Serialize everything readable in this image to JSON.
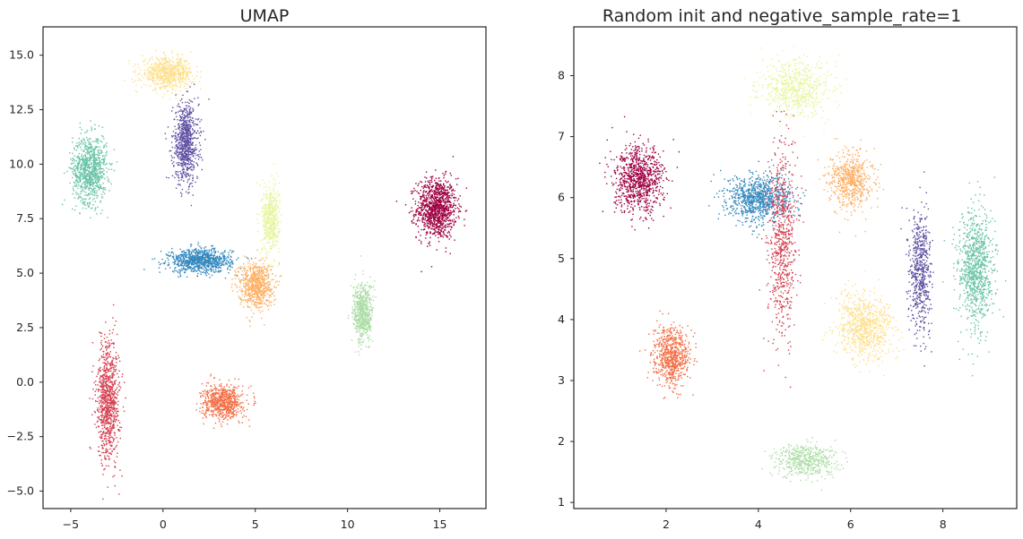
{
  "figure": {
    "background": "#ffffff",
    "point_style": "dense colored point clouds"
  },
  "chart_data": [
    {
      "type": "scatter",
      "title": "UMAP",
      "xlabel": "",
      "ylabel": "",
      "xlim": [
        -6.5,
        17.5
      ],
      "ylim": [
        -5.8,
        16.3
      ],
      "xticks": [
        -5,
        0,
        5,
        10,
        15
      ],
      "xtick_labels": [
        "−5",
        "0",
        "5",
        "10",
        "15"
      ],
      "yticks": [
        -5.0,
        -2.5,
        0.0,
        2.5,
        5.0,
        7.5,
        10.0,
        12.5,
        15.0
      ],
      "ytick_labels": [
        "−5.0",
        "−2.5",
        "0.0",
        "2.5",
        "5.0",
        "7.5",
        "10.0",
        "12.5",
        "15.0"
      ],
      "grid": false,
      "legend": "none",
      "clusters": [
        {
          "color": "#9e0142",
          "center": [
            14.8,
            8.0
          ],
          "spread": [
            1.4,
            1.8
          ],
          "count": 1100
        },
        {
          "color": "#66c2a5",
          "center": [
            -4.0,
            9.8
          ],
          "spread": [
            1.2,
            2.0
          ],
          "count": 900
        },
        {
          "color": "#5e4fa2",
          "center": [
            1.2,
            11.0
          ],
          "spread": [
            0.9,
            2.4
          ],
          "count": 800
        },
        {
          "color": "#fee08b",
          "center": [
            0.2,
            14.2
          ],
          "spread": [
            1.8,
            0.9
          ],
          "count": 700
        },
        {
          "color": "#3288bd",
          "center": [
            2.0,
            5.6
          ],
          "spread": [
            2.2,
            0.7
          ],
          "count": 900
        },
        {
          "color": "#e6f598",
          "center": [
            5.8,
            7.5
          ],
          "spread": [
            0.6,
            2.0
          ],
          "count": 500
        },
        {
          "color": "#fdae61",
          "center": [
            5.0,
            4.5
          ],
          "spread": [
            1.2,
            1.4
          ],
          "count": 700
        },
        {
          "color": "#abdda4",
          "center": [
            10.8,
            3.2
          ],
          "spread": [
            0.7,
            1.8
          ],
          "count": 600
        },
        {
          "color": "#f46d43",
          "center": [
            3.2,
            -0.9
          ],
          "spread": [
            1.4,
            1.0
          ],
          "count": 700
        },
        {
          "color": "#d53e4f",
          "center": [
            -3.0,
            -0.8
          ],
          "spread": [
            0.8,
            3.6
          ],
          "count": 900
        }
      ]
    },
    {
      "type": "scatter",
      "title": "Random init and negative_sample_rate=1",
      "xlabel": "",
      "ylabel": "",
      "xlim": [
        0.0,
        9.6
      ],
      "ylim": [
        0.9,
        8.8
      ],
      "xticks": [
        2,
        4,
        6,
        8
      ],
      "xtick_labels": [
        "2",
        "4",
        "6",
        "8"
      ],
      "yticks": [
        1,
        2,
        3,
        4,
        5,
        6,
        7,
        8
      ],
      "ytick_labels": [
        "1",
        "2",
        "3",
        "4",
        "5",
        "6",
        "7",
        "8"
      ],
      "grid": false,
      "legend": "none",
      "clusters": [
        {
          "color": "#9e0142",
          "center": [
            1.4,
            6.3
          ],
          "spread": [
            0.7,
            0.7
          ],
          "count": 900
        },
        {
          "color": "#3288bd",
          "center": [
            4.0,
            6.0
          ],
          "spread": [
            0.9,
            0.5
          ],
          "count": 900
        },
        {
          "color": "#fdae61",
          "center": [
            6.0,
            6.3
          ],
          "spread": [
            0.6,
            0.6
          ],
          "count": 600
        },
        {
          "color": "#e6f598",
          "center": [
            4.8,
            7.8
          ],
          "spread": [
            1.0,
            0.6
          ],
          "count": 600
        },
        {
          "color": "#d53e4f",
          "center": [
            4.5,
            5.3
          ],
          "spread": [
            0.4,
            2.0
          ],
          "count": 700
        },
        {
          "color": "#5e4fa2",
          "center": [
            7.5,
            4.8
          ],
          "spread": [
            0.3,
            1.3
          ],
          "count": 600
        },
        {
          "color": "#66c2a5",
          "center": [
            8.7,
            4.8
          ],
          "spread": [
            0.5,
            1.3
          ],
          "count": 900
        },
        {
          "color": "#fee08b",
          "center": [
            6.3,
            3.9
          ],
          "spread": [
            0.8,
            0.7
          ],
          "count": 800
        },
        {
          "color": "#f46d43",
          "center": [
            2.1,
            3.4
          ],
          "spread": [
            0.5,
            0.6
          ],
          "count": 700
        },
        {
          "color": "#abdda4",
          "center": [
            5.0,
            1.7
          ],
          "spread": [
            0.9,
            0.35
          ],
          "count": 500
        }
      ]
    }
  ]
}
